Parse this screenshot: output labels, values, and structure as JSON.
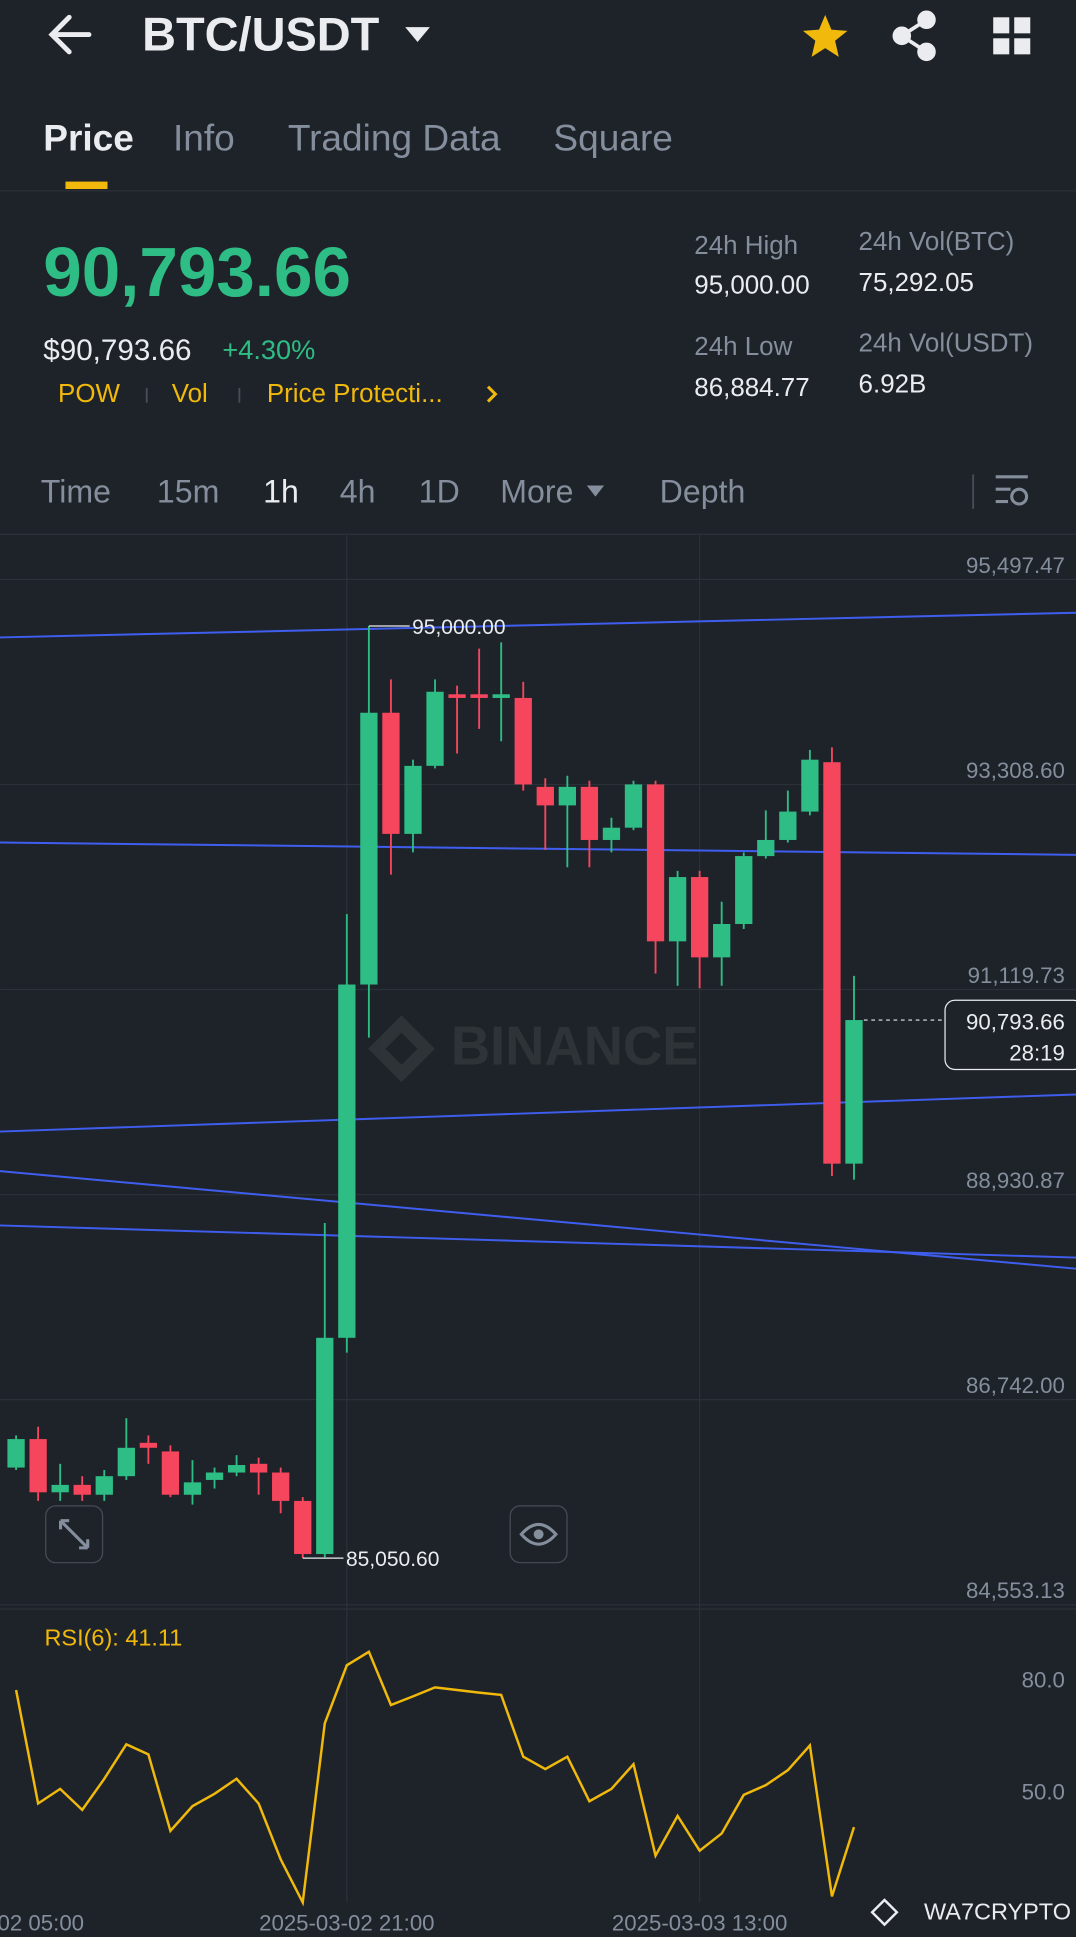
{
  "header": {
    "pair": "BTC/USDT",
    "tabs": [
      "Price",
      "Info",
      "Trading Data",
      "Square"
    ],
    "price": "90,793.66",
    "usd_price": "$90,793.66",
    "change": "+4.30%",
    "tags": [
      "POW",
      "Vol",
      "Price Protecti..."
    ],
    "stats": [
      {
        "label": "24h High",
        "value": "95,000.00"
      },
      {
        "label": "24h Vol(BTC)",
        "value": "75,292.05"
      },
      {
        "label": "24h Low",
        "value": "86,884.77"
      },
      {
        "label": "24h Vol(USDT)",
        "value": "6.92B"
      }
    ],
    "intervals": [
      "Time",
      "15m",
      "1h",
      "4h",
      "1D",
      "More",
      "Depth"
    ]
  },
  "chart_data": [
    {
      "type": "candlestick",
      "watermark": "BINANCE",
      "up_color": "#2ebd85",
      "down_color": "#f6465d",
      "categories": [
        null,
        null,
        null,
        null,
        null,
        null,
        null,
        null,
        null,
        null,
        null,
        null,
        null,
        null,
        null,
        "2025-03-02 21:00",
        null,
        null,
        null,
        null,
        null,
        null,
        null,
        null,
        null,
        null,
        null,
        null,
        null,
        null,
        null,
        "2025-03-03 13:00",
        null,
        null,
        null,
        null,
        null,
        null,
        null
      ],
      "x_edge_label": "02 05:00",
      "open": [
        86017,
        86321,
        85753,
        85832,
        85727,
        85925,
        86281,
        86189,
        85727,
        85885,
        85964,
        86057,
        85964,
        85661,
        85094,
        87402,
        91173,
        94074,
        92781,
        93507,
        94271,
        94271,
        94232,
        94232,
        93283,
        93085,
        93283,
        92716,
        92847,
        93309,
        91634,
        92320,
        91463,
        91819,
        92544,
        92716,
        93019,
        93546,
        89261
      ],
      "high": [
        86360,
        86452,
        86057,
        85925,
        85991,
        86544,
        86360,
        86254,
        86096,
        86017,
        86149,
        86123,
        86017,
        85701,
        88628,
        91924,
        95000,
        94430,
        93573,
        94430,
        94364,
        94759,
        94825,
        94403,
        93375,
        93401,
        93348,
        92953,
        93348,
        93348,
        92386,
        92386,
        92056,
        92584,
        93032,
        93243,
        93678,
        93704,
        91265
      ],
      "low": [
        85991,
        85661,
        85661,
        85661,
        85661,
        85885,
        86057,
        85701,
        85622,
        85793,
        85925,
        85727,
        85529,
        85050.6,
        85060,
        87244,
        90606,
        92346,
        92584,
        93480,
        93639,
        93902,
        93770,
        93243,
        92610,
        92425,
        92425,
        92584,
        92821,
        91291,
        91160,
        91133,
        91160,
        91766,
        92518,
        92689,
        92979,
        89129,
        89089
      ],
      "close": [
        86321,
        85753,
        85832,
        85727,
        85925,
        86228,
        86228,
        85727,
        85859,
        85964,
        86044,
        85964,
        85661,
        85094,
        87402,
        91173,
        94074,
        92781,
        93507,
        94298,
        94232,
        94232,
        94271,
        93309,
        93085,
        93283,
        92716,
        92847,
        93309,
        91634,
        92320,
        91463,
        91819,
        92544,
        92716,
        93019,
        93573,
        89261,
        90793.66
      ],
      "high_label": "95,000.00",
      "low_label": "85,050.60",
      "last_price_label": "90,793.66",
      "countdown": "28:19",
      "ylim": [
        84540,
        95946
      ],
      "yticks": [
        {
          "value": 95497.47,
          "label": "95,497.47"
        },
        {
          "value": 93308.6,
          "label": "93,308.60"
        },
        {
          "value": 91119.73,
          "label": "91,119.73"
        },
        {
          "value": 88930.87,
          "label": "88,930.87"
        },
        {
          "value": 86742.0,
          "label": "86,742.00"
        },
        {
          "value": 84553.13,
          "label": "84,553.13"
        }
      ]
    },
    {
      "type": "line",
      "title": "RSI(6): 41.11",
      "color": "#f0b90b",
      "values": [
        77.7,
        47.4,
        51.3,
        45.7,
        54.0,
        63.2,
        60.5,
        40.1,
        46.7,
        50.0,
        54.0,
        47.4,
        32.5,
        21.0,
        68.8,
        84.3,
        87.9,
        73.7,
        76.0,
        78.4,
        77.7,
        77.0,
        76.4,
        59.9,
        56.6,
        59.9,
        48.0,
        51.3,
        57.9,
        33.5,
        44.1,
        34.8,
        39.4,
        49.7,
        52.3,
        56.3,
        62.9,
        22.6,
        41.11
      ],
      "ylim": [
        21,
        97.5
      ],
      "yticks": [
        {
          "value": 80,
          "label": "80.0"
        },
        {
          "value": 50,
          "label": "50.0"
        }
      ]
    }
  ],
  "footer": {
    "brand": "WA7CRYPTO"
  }
}
